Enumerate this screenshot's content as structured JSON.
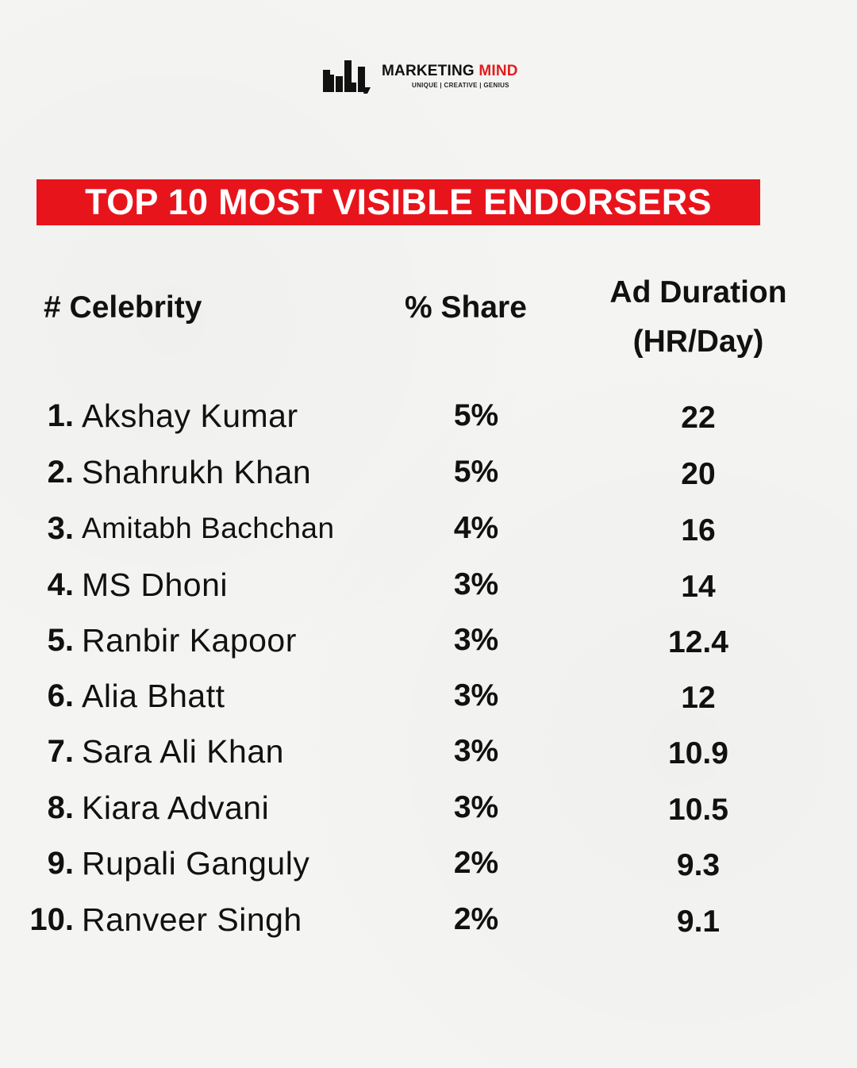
{
  "brand": {
    "name_part1": "MARKETING",
    "name_part2": "MIND",
    "tagline": "UNIQUE | CREATIVE | GENIUS",
    "logo_icon": "bar-chart-logo-icon",
    "accent_color": "#e11d1d"
  },
  "title": "TOP 10 MOST VISIBLE ENDORSERS",
  "title_bg_color": "#e8141c",
  "headers": {
    "celebrity": "# Celebrity",
    "share": "% Share",
    "duration_line1": "Ad Duration",
    "duration_line2": "(HR/Day)"
  },
  "chart_data": {
    "type": "table",
    "title": "TOP 10 MOST VISIBLE ENDORSERS",
    "columns": [
      "# Celebrity",
      "% Share",
      "Ad Duration (HR/Day)"
    ],
    "rows": [
      {
        "rank": "1.",
        "name": "Akshay Kumar",
        "share": "5%",
        "duration": "22"
      },
      {
        "rank": "2.",
        "name": "Shahrukh Khan",
        "share": "5%",
        "duration": "20"
      },
      {
        "rank": "3.",
        "name": "Amitabh Bachchan",
        "share": "4%",
        "duration": "16"
      },
      {
        "rank": "4.",
        "name": "MS Dhoni",
        "share": "3%",
        "duration": "14"
      },
      {
        "rank": "5.",
        "name": "Ranbir Kapoor",
        "share": "3%",
        "duration": "12.4"
      },
      {
        "rank": "6.",
        "name": "Alia Bhatt",
        "share": "3%",
        "duration": "12"
      },
      {
        "rank": "7.",
        "name": "Sara Ali Khan",
        "share": "3%",
        "duration": "10.9"
      },
      {
        "rank": "8.",
        "name": "Kiara Advani",
        "share": "3%",
        "duration": "10.5"
      },
      {
        "rank": "9.",
        "name": "Rupali Ganguly",
        "share": "2%",
        "duration": "9.3"
      },
      {
        "rank": "10.",
        "name": "Ranveer Singh",
        "share": "2%",
        "duration": "9.1"
      }
    ]
  }
}
